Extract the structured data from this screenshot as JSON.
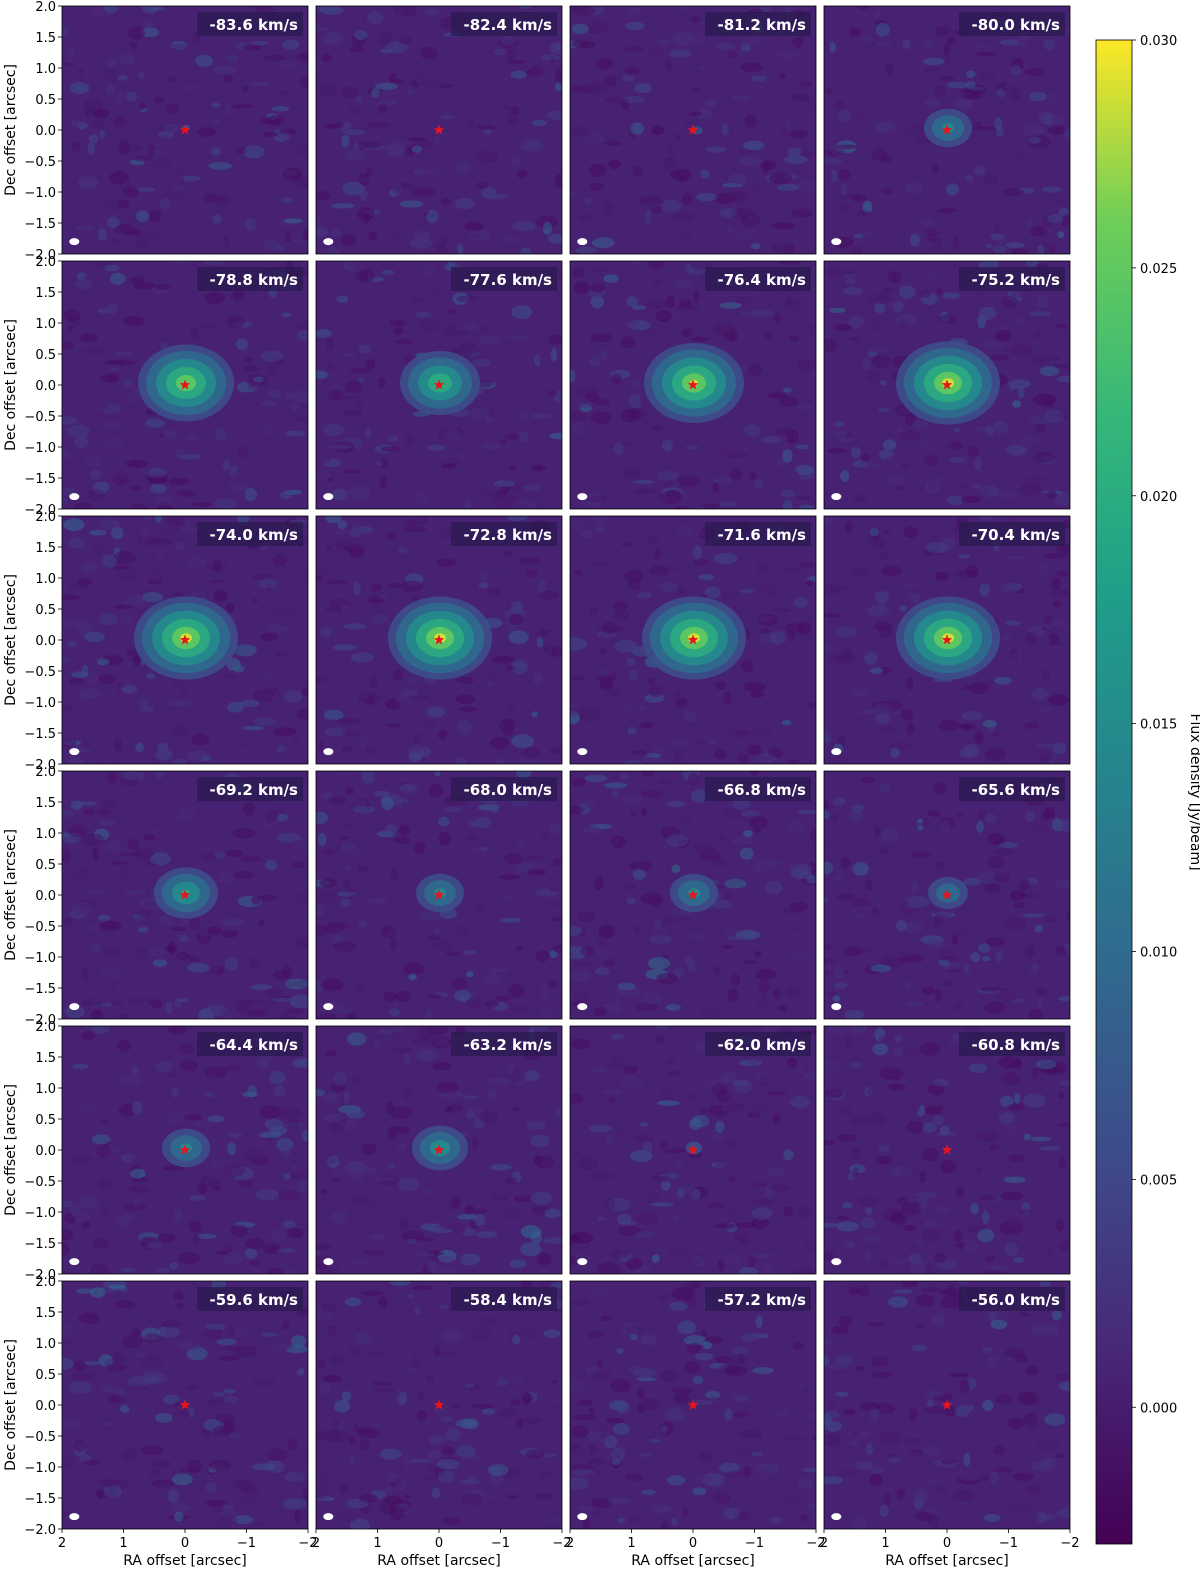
{
  "chart_data": {
    "type": "heatmap",
    "title": "",
    "xlabel": "RA offset [arcsec]",
    "ylabel": "Dec offset [arcsec]",
    "xlim": [
      2,
      -2
    ],
    "ylim": [
      -2,
      2
    ],
    "x_ticks": [
      "2",
      "1",
      "0",
      "−1",
      "−2"
    ],
    "y_ticks": [
      "2.0",
      "1.5",
      "1.0",
      "0.5",
      "0.0",
      "−0.5",
      "−1.0",
      "−1.5",
      "−2.0"
    ],
    "layout": {
      "rows": 6,
      "cols": 4
    },
    "channels": [
      {
        "label": "-83.6 km/s",
        "velocity": -83.6,
        "peak": 0.006
      },
      {
        "label": "-82.4 km/s",
        "velocity": -82.4,
        "peak": 0.005
      },
      {
        "label": "-81.2 km/s",
        "velocity": -81.2,
        "peak": 0.005
      },
      {
        "label": "-80.0 km/s",
        "velocity": -80.0,
        "peak": 0.016
      },
      {
        "label": "-78.8 km/s",
        "velocity": -78.8,
        "peak": 0.028
      },
      {
        "label": "-77.6 km/s",
        "velocity": -77.6,
        "peak": 0.024
      },
      {
        "label": "-76.4 km/s",
        "velocity": -76.4,
        "peak": 0.029
      },
      {
        "label": "-75.2 km/s",
        "velocity": -75.2,
        "peak": 0.03
      },
      {
        "label": "-74.0 km/s",
        "velocity": -74.0,
        "peak": 0.03
      },
      {
        "label": "-72.8 km/s",
        "velocity": -72.8,
        "peak": 0.03
      },
      {
        "label": "-71.6 km/s",
        "velocity": -71.6,
        "peak": 0.03
      },
      {
        "label": "-70.4 km/s",
        "velocity": -70.4,
        "peak": 0.03
      },
      {
        "label": "-69.2 km/s",
        "velocity": -69.2,
        "peak": 0.02
      },
      {
        "label": "-68.0 km/s",
        "velocity": -68.0,
        "peak": 0.016
      },
      {
        "label": "-66.8 km/s",
        "velocity": -66.8,
        "peak": 0.016
      },
      {
        "label": "-65.6 km/s",
        "velocity": -65.6,
        "peak": 0.014
      },
      {
        "label": "-64.4 km/s",
        "velocity": -64.4,
        "peak": 0.016
      },
      {
        "label": "-63.2 km/s",
        "velocity": -63.2,
        "peak": 0.018
      },
      {
        "label": "-62.0 km/s",
        "velocity": -62.0,
        "peak": 0.008
      },
      {
        "label": "-60.8 km/s",
        "velocity": -60.8,
        "peak": 0.004
      },
      {
        "label": "-59.6 km/s",
        "velocity": -59.6,
        "peak": 0.002
      },
      {
        "label": "-58.4 km/s",
        "velocity": -58.4,
        "peak": 0.002
      },
      {
        "label": "-57.2 km/s",
        "velocity": -57.2,
        "peak": 0.002
      },
      {
        "label": "-56.0 km/s",
        "velocity": -56.0,
        "peak": 0.002
      }
    ],
    "source_position": {
      "ra": 0,
      "dec": 0
    },
    "beam_position": {
      "ra": 1.8,
      "dec": -1.8
    },
    "colorbar": {
      "label": "Flux density [Jy/beam]",
      "vmin": -0.003,
      "vmax": 0.03,
      "ticks": [
        {
          "value": 0.0,
          "label": "0.000"
        },
        {
          "value": 0.005,
          "label": "0.005"
        },
        {
          "value": 0.01,
          "label": "0.010"
        },
        {
          "value": 0.015,
          "label": "0.015"
        },
        {
          "value": 0.02,
          "label": "0.020"
        },
        {
          "value": 0.025,
          "label": "0.025"
        },
        {
          "value": 0.03,
          "label": "0.030"
        }
      ],
      "colormap": "viridis"
    },
    "colors": {
      "source_marker": "#e8141c",
      "beam": "#ffffff",
      "label_box": "#2a1a4f",
      "label_text": "#ffffff"
    }
  }
}
